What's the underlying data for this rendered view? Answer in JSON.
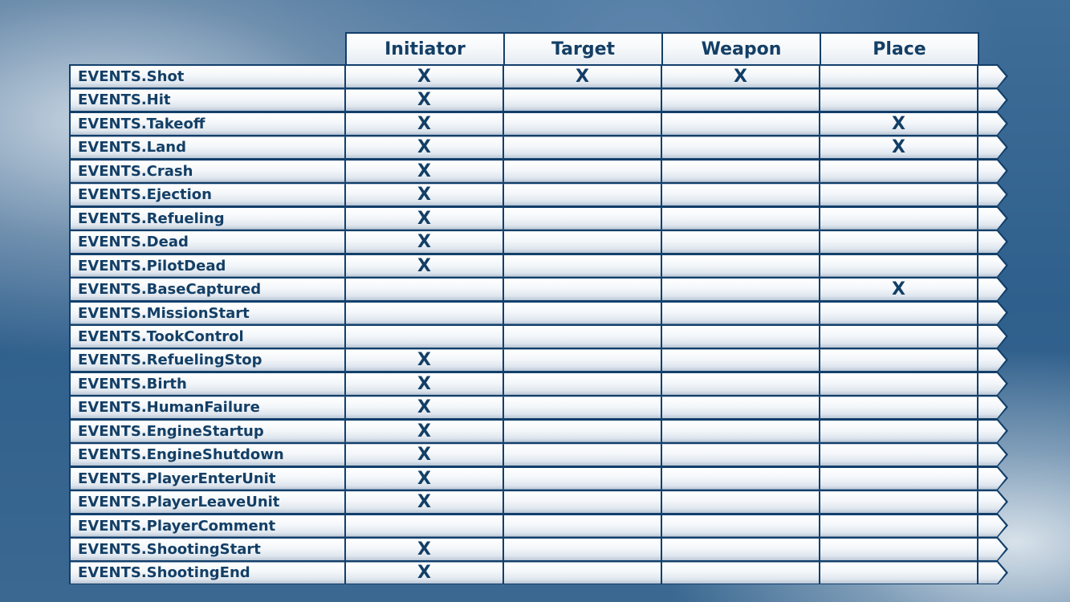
{
  "columns": [
    "Initiator",
    "Target",
    "Weapon",
    "Place"
  ],
  "rows": [
    {
      "label": "EVENTS.Shot",
      "marks": [
        "X",
        "X",
        "X",
        ""
      ]
    },
    {
      "label": "EVENTS.Hit",
      "marks": [
        "X",
        "",
        "",
        ""
      ]
    },
    {
      "label": "EVENTS.Takeoff",
      "marks": [
        "X",
        "",
        "",
        "X"
      ]
    },
    {
      "label": "EVENTS.Land",
      "marks": [
        "X",
        "",
        "",
        "X"
      ]
    },
    {
      "label": "EVENTS.Crash",
      "marks": [
        "X",
        "",
        "",
        ""
      ]
    },
    {
      "label": "EVENTS.Ejection",
      "marks": [
        "X",
        "",
        "",
        ""
      ]
    },
    {
      "label": "EVENTS.Refueling",
      "marks": [
        "X",
        "",
        "",
        ""
      ]
    },
    {
      "label": "EVENTS.Dead",
      "marks": [
        "X",
        "",
        "",
        ""
      ]
    },
    {
      "label": "EVENTS.PilotDead",
      "marks": [
        "X",
        "",
        "",
        ""
      ]
    },
    {
      "label": "EVENTS.BaseCaptured",
      "marks": [
        "",
        "",
        "",
        "X"
      ]
    },
    {
      "label": "EVENTS.MissionStart",
      "marks": [
        "",
        "",
        "",
        ""
      ]
    },
    {
      "label": "EVENTS.TookControl",
      "marks": [
        "",
        "",
        "",
        ""
      ]
    },
    {
      "label": "EVENTS.RefuelingStop",
      "marks": [
        "X",
        "",
        "",
        ""
      ]
    },
    {
      "label": "EVENTS.Birth",
      "marks": [
        "X",
        "",
        "",
        ""
      ]
    },
    {
      "label": "EVENTS.HumanFailure",
      "marks": [
        "X",
        "",
        "",
        ""
      ]
    },
    {
      "label": "EVENTS.EngineStartup",
      "marks": [
        "X",
        "",
        "",
        ""
      ]
    },
    {
      "label": "EVENTS.EngineShutdown",
      "marks": [
        "X",
        "",
        "",
        ""
      ]
    },
    {
      "label": "EVENTS.PlayerEnterUnit",
      "marks": [
        "X",
        "",
        "",
        ""
      ]
    },
    {
      "label": "EVENTS.PlayerLeaveUnit",
      "marks": [
        "X",
        "",
        "",
        ""
      ]
    },
    {
      "label": "EVENTS.PlayerComment",
      "marks": [
        "",
        "",
        "",
        ""
      ]
    },
    {
      "label": "EVENTS.ShootingStart",
      "marks": [
        "X",
        "",
        "",
        ""
      ]
    },
    {
      "label": "EVENTS.ShootingEnd",
      "marks": [
        "X",
        "",
        "",
        ""
      ]
    }
  ],
  "colors": {
    "border": "#123f6b",
    "text": "#133f66"
  }
}
